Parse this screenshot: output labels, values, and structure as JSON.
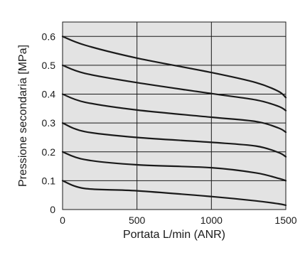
{
  "chart_data": {
    "type": "line",
    "xlabel": "Portata L/min (ANR)",
    "ylabel": "Pressione secondaria [MPa]",
    "xlim": [
      0,
      1500
    ],
    "ylim": [
      0,
      0.65
    ],
    "x_ticks": [
      "0",
      "500",
      "1000",
      "1500"
    ],
    "y_ticks": [
      "0",
      "0.1",
      "0.2",
      "0.3",
      "0.4",
      "0.5",
      "0.6"
    ],
    "x_tick_values": [
      0,
      500,
      1000,
      1500
    ],
    "y_tick_values": [
      0,
      0.1,
      0.2,
      0.3,
      0.4,
      0.5,
      0.6
    ],
    "grid": true,
    "background_color": "#e3e3e3",
    "line_color": "#1a1a1a",
    "series": [
      {
        "x": [
          0,
          150,
          500,
          1000,
          1300,
          1450,
          1500
        ],
        "y": [
          0.6,
          0.57,
          0.525,
          0.475,
          0.44,
          0.41,
          0.388
        ]
      },
      {
        "x": [
          0,
          150,
          500,
          1000,
          1300,
          1450,
          1500
        ],
        "y": [
          0.5,
          0.472,
          0.44,
          0.402,
          0.38,
          0.358,
          0.343
        ]
      },
      {
        "x": [
          0,
          150,
          500,
          1000,
          1300,
          1450,
          1500
        ],
        "y": [
          0.4,
          0.372,
          0.345,
          0.32,
          0.305,
          0.283,
          0.268
        ]
      },
      {
        "x": [
          0,
          150,
          500,
          1000,
          1300,
          1450,
          1500
        ],
        "y": [
          0.3,
          0.27,
          0.25,
          0.233,
          0.22,
          0.198,
          0.183
        ]
      },
      {
        "x": [
          0,
          150,
          500,
          1000,
          1300,
          1450,
          1500
        ],
        "y": [
          0.2,
          0.173,
          0.155,
          0.145,
          0.127,
          0.108,
          0.1
        ]
      },
      {
        "x": [
          0,
          150,
          500,
          1000,
          1300,
          1450,
          1500
        ],
        "y": [
          0.1,
          0.073,
          0.065,
          0.045,
          0.03,
          0.02,
          0.015
        ]
      }
    ]
  }
}
